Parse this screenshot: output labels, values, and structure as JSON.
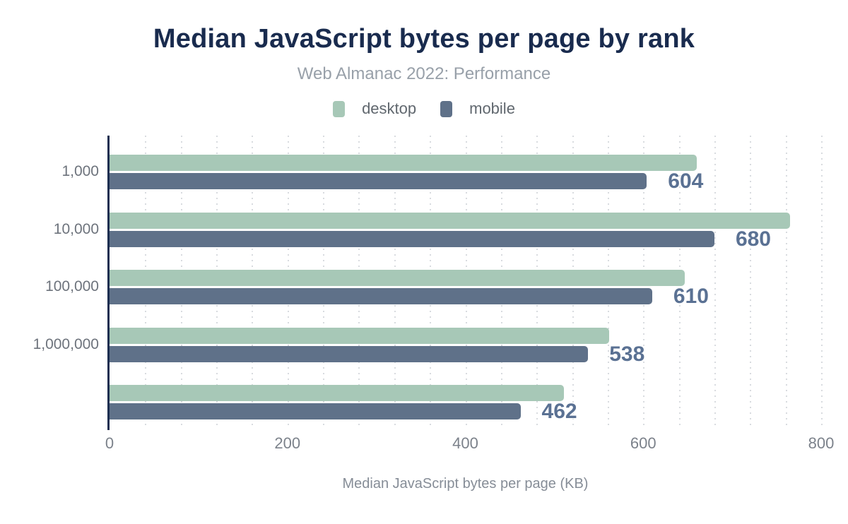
{
  "title": "Median JavaScript bytes per page by rank",
  "subtitle": "Web Almanac 2022: Performance",
  "colors": {
    "desktop": "#a7c8b7",
    "mobile": "#5f7189",
    "axis_line": "#1c2e50",
    "title_text": "#192b4e",
    "data_label": "#5a7193",
    "gridline": "#d8dbdf"
  },
  "chart_data": {
    "type": "bar",
    "orientation": "horizontal",
    "title": "Median JavaScript bytes per page by rank",
    "subtitle": "Web Almanac 2022: Performance",
    "categories": [
      "1,000",
      "10,000",
      "100,000",
      "1,000,000",
      ""
    ],
    "series": [
      {
        "name": "desktop",
        "color": "#a7c8b7",
        "values": [
          660,
          765,
          647,
          562,
          511
        ],
        "labels_shown": false
      },
      {
        "name": "mobile",
        "color": "#5f7189",
        "values": [
          604,
          680,
          610,
          538,
          462
        ],
        "labels_shown": true,
        "data_labels": [
          "604",
          "680",
          "610",
          "538",
          "462"
        ]
      }
    ],
    "xlabel": "Median JavaScript bytes per page (KB)",
    "ylabel": "",
    "xlim": [
      0,
      800
    ],
    "x_ticks": [
      0,
      200,
      400,
      600,
      800
    ],
    "x_tick_labels": [
      "0",
      "200",
      "400",
      "600",
      "800"
    ],
    "x_minor_gridline_step": 40,
    "grid": "dotted-vertical-minor",
    "legend_position": "top"
  }
}
